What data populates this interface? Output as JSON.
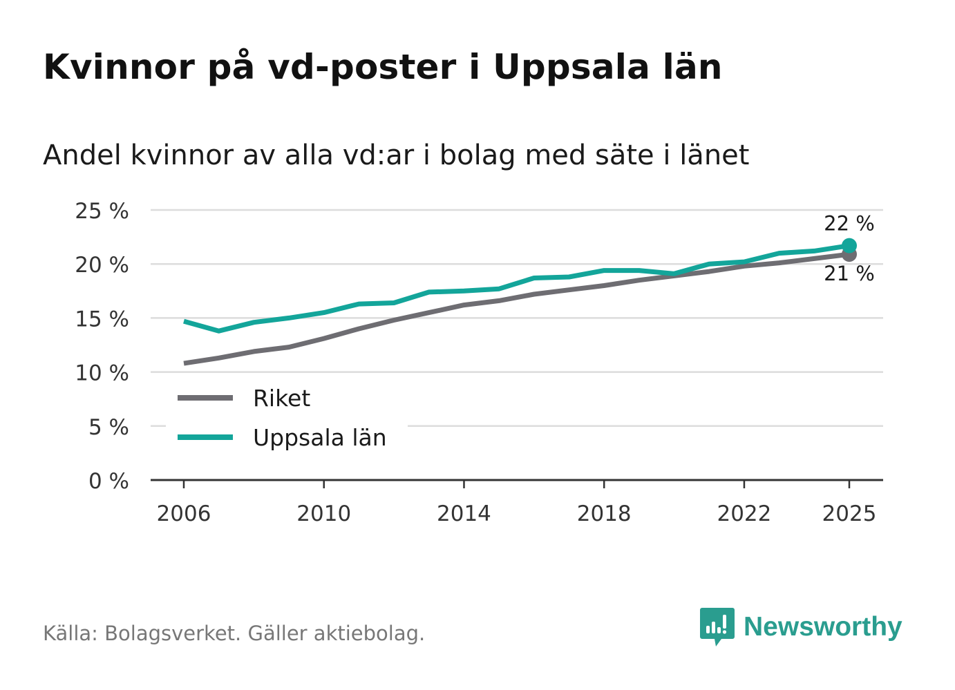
{
  "title": "Kvinnor på vd-poster i Uppsala län",
  "subtitle": "Andel kvinnor av alla vd:ar i bolag med säte i länet",
  "source": "Källa: Bolagsverket. Gäller aktiebolag.",
  "brand": {
    "name": "Newsworthy",
    "icon": "newsworthy-logo-icon",
    "color": "#2a9d8f"
  },
  "chart_data": {
    "type": "line",
    "title": "Kvinnor på vd-poster i Uppsala län",
    "subtitle": "Andel kvinnor av alla vd:ar i bolag med säte i länet",
    "xlabel": "",
    "ylabel": "",
    "x": [
      2006,
      2007,
      2008,
      2009,
      2010,
      2011,
      2012,
      2013,
      2014,
      2015,
      2016,
      2017,
      2018,
      2019,
      2020,
      2021,
      2022,
      2023,
      2024,
      2025
    ],
    "x_ticks": [
      2006,
      2010,
      2014,
      2018,
      2022,
      2025
    ],
    "y_ticks": [
      0,
      5,
      10,
      15,
      20,
      25
    ],
    "ylim": [
      0,
      25
    ],
    "y_tick_suffix": " %",
    "grid": true,
    "legend": "lower-left",
    "series": [
      {
        "name": "Riket",
        "color": "#6e6d72",
        "values": [
          10.8,
          11.3,
          11.9,
          12.3,
          13.1,
          14.0,
          14.8,
          15.5,
          16.2,
          16.6,
          17.2,
          17.6,
          18.0,
          18.5,
          18.9,
          19.3,
          19.8,
          20.1,
          20.5,
          20.9
        ],
        "end_label": "21 %"
      },
      {
        "name": "Uppsala län",
        "color": "#13a59a",
        "values": [
          14.7,
          13.8,
          14.6,
          15.0,
          15.5,
          16.3,
          16.4,
          17.4,
          17.5,
          17.7,
          18.7,
          18.8,
          19.4,
          19.4,
          19.1,
          20.0,
          20.2,
          21.0,
          21.2,
          21.7
        ],
        "end_label": "22 %"
      }
    ]
  }
}
